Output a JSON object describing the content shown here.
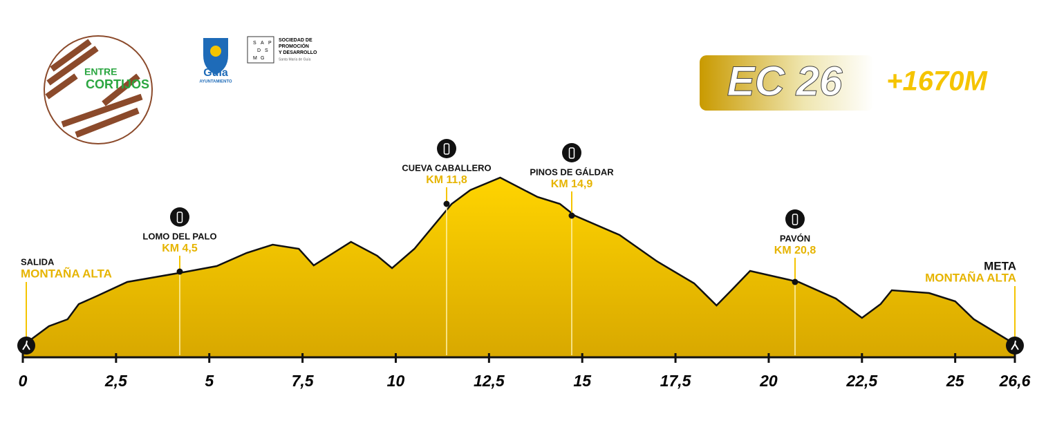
{
  "header": {
    "logo_text": [
      "ENTRE",
      "CORTIJOS"
    ],
    "town": "Guía",
    "town_sub": "AYUNTAMIENTO",
    "society_letters": [
      "S",
      "A",
      "P",
      "D",
      "S",
      "M",
      "G"
    ],
    "society": [
      "SOCIEDAD DE",
      "PROMOCIÓN",
      "Y DESARROLLO"
    ],
    "society_sub": "Santa María de Guía",
    "badge": "EC 26",
    "gain": "+1670M"
  },
  "chart_data": {
    "type": "area",
    "color": "#f5c400",
    "x": [
      0,
      0.7,
      1.2,
      1.5,
      2.0,
      2.8,
      4.4,
      5.2,
      6.0,
      6.7,
      7.4,
      7.8,
      8.8,
      9.5,
      9.9,
      10.5,
      11.5,
      12.0,
      12.8,
      13.8,
      14.4,
      14.8,
      16.0,
      17.0,
      18.0,
      18.6,
      19.0,
      19.5,
      20.8,
      21.8,
      22.5,
      23.0,
      23.3,
      24.3,
      25.0,
      25.5,
      26.6
    ],
    "values": [
      17,
      45,
      55,
      77,
      89,
      109,
      124,
      132,
      151,
      163,
      157,
      133,
      167,
      147,
      129,
      157,
      222,
      242,
      260,
      232,
      222,
      205,
      177,
      139,
      107,
      75,
      97,
      125,
      109,
      85,
      57,
      77,
      97,
      93,
      81,
      55,
      19
    ],
    "xlim": [
      0,
      26.6
    ],
    "ylim": [
      0,
      300
    ],
    "xticks": [
      0,
      {
        "value": 2.5,
        "label": "2,5"
      },
      5,
      {
        "value": 7.5,
        "label": "7,5"
      },
      10,
      {
        "value": 12.5,
        "label": "12,5"
      },
      15,
      {
        "value": 17.5,
        "label": "17,5"
      },
      20,
      {
        "value": 22.5,
        "label": "22,5"
      },
      25,
      {
        "value": 26.6,
        "label": "26,6"
      }
    ],
    "annotations": [
      {
        "name": "SALIDA",
        "place": "MONTAÑA ALTA"
      },
      {
        "name": "LOMO DEL PALO",
        "place": "KM 4,5"
      },
      {
        "name": "CUEVA CABALLERO",
        "place": "KM 11,8"
      },
      {
        "name": "PINOS DE GÁLDAR",
        "place": "KM 14,9"
      },
      {
        "name": "PAVÓN",
        "place": "KM 20,8"
      },
      {
        "name": "META",
        "place": "MONTAÑA ALTA"
      }
    ]
  }
}
